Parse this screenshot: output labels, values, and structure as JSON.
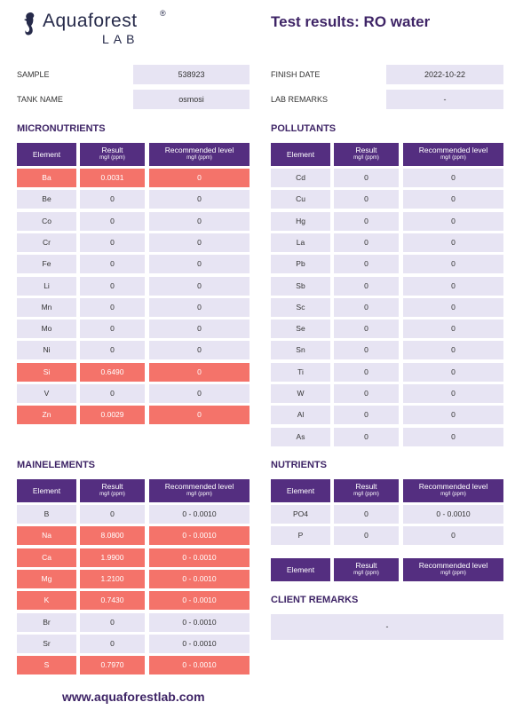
{
  "logo": {
    "word": "Aquaforest",
    "reg": "®",
    "sub": "LAB"
  },
  "title": "Test results: RO water",
  "info": {
    "sample_label": "SAMPLE",
    "sample_value": "538923",
    "tank_label": "TANK NAME",
    "tank_value": "osmosi",
    "finish_label": "FINISH DATE",
    "finish_value": "2022-10-22",
    "remarks_label": "LAB REMARKS",
    "remarks_value": "-"
  },
  "headers": {
    "element": "Element",
    "result": "Result",
    "result_unit": "mg/l (ppm)",
    "rec": "Recommended level",
    "rec_unit": "mg/l (ppm)"
  },
  "micronutrients": {
    "title": "MICRONUTRIENTS",
    "rows": [
      {
        "el": "Ba",
        "res": "0.0031",
        "rec": "0",
        "hi": true
      },
      {
        "el": "Be",
        "res": "0",
        "rec": "0",
        "hi": false
      },
      {
        "el": "Co",
        "res": "0",
        "rec": "0",
        "hi": false
      },
      {
        "el": "Cr",
        "res": "0",
        "rec": "0",
        "hi": false
      },
      {
        "el": "Fe",
        "res": "0",
        "rec": "0",
        "hi": false
      },
      {
        "el": "Li",
        "res": "0",
        "rec": "0",
        "hi": false
      },
      {
        "el": "Mn",
        "res": "0",
        "rec": "0",
        "hi": false
      },
      {
        "el": "Mo",
        "res": "0",
        "rec": "0",
        "hi": false
      },
      {
        "el": "Ni",
        "res": "0",
        "rec": "0",
        "hi": false
      },
      {
        "el": "Si",
        "res": "0.6490",
        "rec": "0",
        "hi": true
      },
      {
        "el": "V",
        "res": "0",
        "rec": "0",
        "hi": false
      },
      {
        "el": "Zn",
        "res": "0.0029",
        "rec": "0",
        "hi": true
      }
    ]
  },
  "pollutants": {
    "title": "POLLUTANTS",
    "rows": [
      {
        "el": "Cd",
        "res": "0",
        "rec": "0",
        "hi": false
      },
      {
        "el": "Cu",
        "res": "0",
        "rec": "0",
        "hi": false
      },
      {
        "el": "Hg",
        "res": "0",
        "rec": "0",
        "hi": false
      },
      {
        "el": "La",
        "res": "0",
        "rec": "0",
        "hi": false
      },
      {
        "el": "Pb",
        "res": "0",
        "rec": "0",
        "hi": false
      },
      {
        "el": "Sb",
        "res": "0",
        "rec": "0",
        "hi": false
      },
      {
        "el": "Sc",
        "res": "0",
        "rec": "0",
        "hi": false
      },
      {
        "el": "Se",
        "res": "0",
        "rec": "0",
        "hi": false
      },
      {
        "el": "Sn",
        "res": "0",
        "rec": "0",
        "hi": false
      },
      {
        "el": "Ti",
        "res": "0",
        "rec": "0",
        "hi": false
      },
      {
        "el": "W",
        "res": "0",
        "rec": "0",
        "hi": false
      },
      {
        "el": "Al",
        "res": "0",
        "rec": "0",
        "hi": false
      },
      {
        "el": "As",
        "res": "0",
        "rec": "0",
        "hi": false
      }
    ]
  },
  "mainelements": {
    "title": "MAINELEMENTS",
    "rows": [
      {
        "el": "B",
        "res": "0",
        "rec": "0 - 0.0010",
        "hi": false
      },
      {
        "el": "Na",
        "res": "8.0800",
        "rec": "0 - 0.0010",
        "hi": true
      },
      {
        "el": "Ca",
        "res": "1.9900",
        "rec": "0 - 0.0010",
        "hi": true
      },
      {
        "el": "Mg",
        "res": "1.2100",
        "rec": "0 - 0.0010",
        "hi": true
      },
      {
        "el": "K",
        "res": "0.7430",
        "rec": "0 - 0.0010",
        "hi": true
      },
      {
        "el": "Br",
        "res": "0",
        "rec": "0 - 0.0010",
        "hi": false
      },
      {
        "el": "Sr",
        "res": "0",
        "rec": "0 - 0.0010",
        "hi": false
      },
      {
        "el": "S",
        "res": "0.7970",
        "rec": "0 - 0.0010",
        "hi": true
      }
    ]
  },
  "nutrients": {
    "title": "NUTRIENTS",
    "rows": [
      {
        "el": "PO4",
        "res": "0",
        "rec": "0 - 0.0010",
        "hi": false
      },
      {
        "el": "P",
        "res": "0",
        "rec": "0",
        "hi": false
      }
    ]
  },
  "client_remarks": {
    "title": "CLIENT REMARKS",
    "value": "-"
  },
  "footer": "www.aquaforestlab.com"
}
